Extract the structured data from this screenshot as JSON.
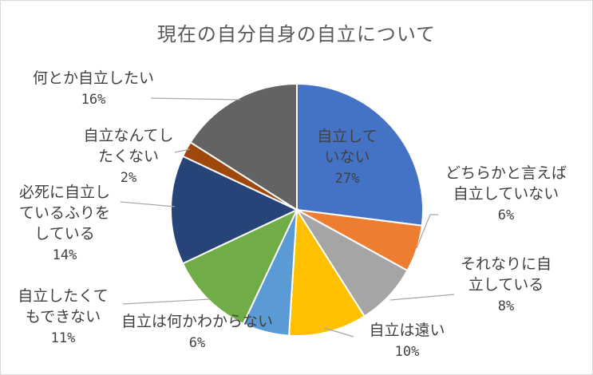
{
  "chart_data": {
    "type": "pie",
    "title": "現在の自分自身の自立について",
    "slices": [
      {
        "label_lines": [
          "自立して",
          "いない"
        ],
        "value_label": "27%",
        "value": 27,
        "color": "#4472C4"
      },
      {
        "label_lines": [
          "どちらかと言えば",
          "自立していない"
        ],
        "value_label": "6%",
        "value": 6,
        "color": "#ED7D31"
      },
      {
        "label_lines": [
          "それなりに自",
          "立している"
        ],
        "value_label": "8%",
        "value": 8,
        "color": "#A5A5A5"
      },
      {
        "label_lines": [
          "自立は遠い"
        ],
        "value_label": "10%",
        "value": 10,
        "color": "#FFC000"
      },
      {
        "label_lines": [
          "自立は何かわからない"
        ],
        "value_label": "6%",
        "value": 6,
        "color": "#5B9BD5"
      },
      {
        "label_lines": [
          "自立したくて",
          "もできない"
        ],
        "value_label": "11%",
        "value": 11,
        "color": "#70AD47"
      },
      {
        "label_lines": [
          "必死に自立し",
          "ているふりを",
          "している"
        ],
        "value_label": "14%",
        "value": 14,
        "color": "#264478"
      },
      {
        "label_lines": [
          "自立なんてし",
          "たくない"
        ],
        "value_label": "2%",
        "value": 2,
        "color": "#9E480E"
      },
      {
        "label_lines": [
          "何とか自立したい"
        ],
        "value_label": "16%",
        "value": 16,
        "color": "#636363"
      }
    ]
  }
}
